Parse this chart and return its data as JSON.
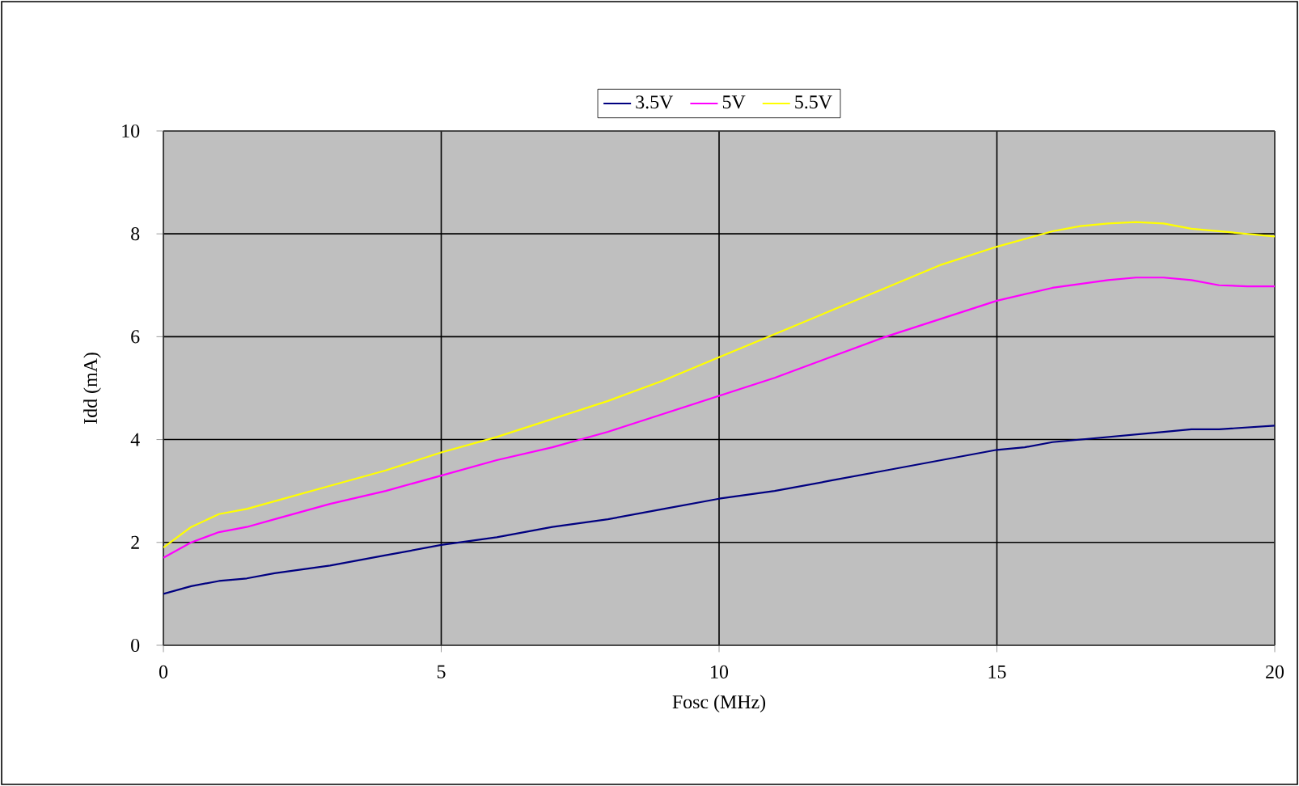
{
  "chart_data": {
    "type": "line",
    "xlabel": "Fosc (MHz)",
    "ylabel": "Idd (mA)",
    "xlim": [
      0,
      20
    ],
    "ylim": [
      0,
      10
    ],
    "xticks": [
      0,
      5,
      10,
      15,
      20
    ],
    "yticks": [
      0,
      2,
      4,
      6,
      8,
      10
    ],
    "grid": true,
    "legend": "top",
    "marker": "none",
    "line_style": "solid",
    "series": [
      {
        "name": "3.5V",
        "color": "#000080",
        "x": [
          0,
          0.5,
          1,
          1.5,
          2,
          3,
          4,
          5,
          6,
          7,
          8,
          9,
          10,
          11,
          12,
          13,
          14,
          15,
          15.5,
          16,
          16.5,
          17,
          17.5,
          18,
          18.5,
          19,
          20
        ],
        "values": [
          1.0,
          1.15,
          1.25,
          1.3,
          1.4,
          1.55,
          1.75,
          1.95,
          2.1,
          2.3,
          2.45,
          2.65,
          2.85,
          3.0,
          3.2,
          3.4,
          3.6,
          3.8,
          3.85,
          3.95,
          4.0,
          4.05,
          4.1,
          4.15,
          4.2,
          4.2,
          4.27
        ]
      },
      {
        "name": "5V",
        "color": "#ff00ff",
        "x": [
          0,
          0.5,
          1,
          1.5,
          2,
          3,
          4,
          5,
          6,
          7,
          8,
          9,
          10,
          11,
          12,
          13,
          14,
          15,
          16,
          17,
          17.5,
          18,
          18.5,
          19,
          19.5,
          20
        ],
        "values": [
          1.7,
          2.0,
          2.2,
          2.3,
          2.45,
          2.75,
          3.0,
          3.3,
          3.6,
          3.85,
          4.15,
          4.5,
          4.85,
          5.2,
          5.6,
          6.0,
          6.35,
          6.7,
          6.95,
          7.1,
          7.15,
          7.15,
          7.1,
          7.0,
          6.98,
          6.98
        ]
      },
      {
        "name": "5.5V",
        "color": "#ffff00",
        "x": [
          0,
          0.5,
          1,
          1.5,
          2,
          3,
          4,
          5,
          6,
          7,
          8,
          9,
          10,
          11,
          12,
          13,
          14,
          15,
          16,
          16.5,
          17,
          17.5,
          18,
          18.5,
          19,
          20
        ],
        "values": [
          1.9,
          2.3,
          2.55,
          2.65,
          2.8,
          3.1,
          3.4,
          3.75,
          4.05,
          4.4,
          4.75,
          5.15,
          5.6,
          6.05,
          6.5,
          6.95,
          7.4,
          7.75,
          8.05,
          8.15,
          8.2,
          8.23,
          8.2,
          8.1,
          8.05,
          7.95
        ]
      }
    ]
  }
}
